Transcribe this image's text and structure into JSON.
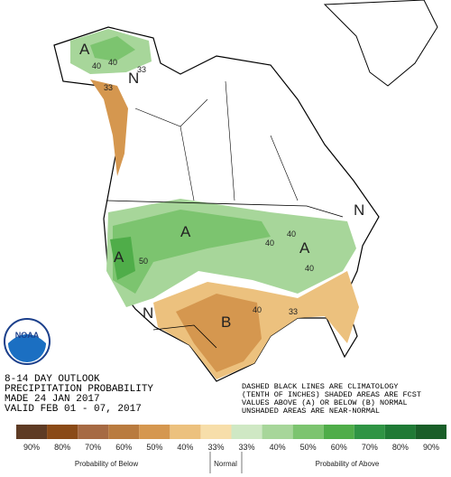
{
  "header": {
    "lines": [
      "8-14 DAY OUTLOOK",
      "PRECIPITATION PROBABILITY",
      "MADE  24 JAN 2017",
      "VALID  FEB 01 - 07, 2017"
    ]
  },
  "notes": [
    "DASHED BLACK LINES ARE CLIMATOLOGY",
    "(TENTH OF INCHES) SHADED AREAS ARE FCST",
    "VALUES ABOVE (A) OR BELOW (B) NORMAL",
    "UNSHADED AREAS ARE NEAR-NORMAL"
  ],
  "logo": "NOAA",
  "map_labels": [
    "A",
    "40",
    "40",
    "33",
    "N",
    "33",
    "A",
    "A",
    "50",
    "40",
    "40",
    "A",
    "40",
    "N",
    "B",
    "N",
    "40",
    "33"
  ],
  "legend": {
    "labels": [
      "90%",
      "80%",
      "70%",
      "60%",
      "50%",
      "40%",
      "33%",
      "33%",
      "40%",
      "50%",
      "60%",
      "70%",
      "80%",
      "90%"
    ],
    "colors": [
      "#5e3b24",
      "#8a4a17",
      "#a66a43",
      "#b97b3f",
      "#d5974f",
      "#ecc17e",
      "#f7deaa",
      "#cfe8c4",
      "#a7d69a",
      "#7cc46f",
      "#4fad49",
      "#2f9444",
      "#1f7a35",
      "#195e28"
    ],
    "below_title": "Probability of Below",
    "normal_title": "Normal",
    "above_title": "Probability of Above"
  }
}
